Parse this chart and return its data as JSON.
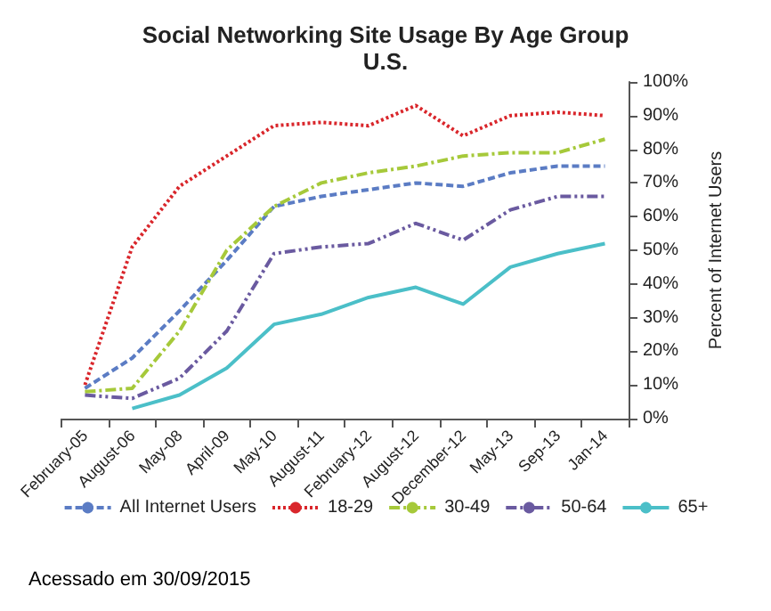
{
  "chart_data": {
    "type": "line",
    "title": "Social Networking Site Usage By Age Group",
    "subtitle": "U.S.",
    "ylabel": "Percent of Internet Users",
    "categories": [
      "February-05",
      "August-06",
      "May-08",
      "April-09",
      "May-10",
      "August-11",
      "February-12",
      "August-12",
      "December-12",
      "May-13",
      "Sep-13",
      "Jan-14"
    ],
    "series": [
      {
        "name": "All Internet Users",
        "color": "#5b7cc4",
        "line_style": "dashed",
        "values": [
          9,
          18,
          32,
          47,
          63,
          66,
          68,
          70,
          69,
          73,
          75,
          75
        ]
      },
      {
        "name": "18-29",
        "color": "#d9262b",
        "line_style": "dotted",
        "values": [
          10,
          51,
          69,
          78,
          87,
          88,
          87,
          93,
          84,
          90,
          91,
          90
        ]
      },
      {
        "name": "30-49",
        "color": "#a6c93a",
        "line_style": "dashdot",
        "values": [
          8,
          9,
          26,
          50,
          63,
          70,
          73,
          75,
          78,
          79,
          79,
          83
        ]
      },
      {
        "name": "50-64",
        "color": "#6a5aa0",
        "line_style": "dashdotdot",
        "values": [
          7,
          6,
          12,
          26,
          49,
          51,
          52,
          58,
          53,
          62,
          66,
          66
        ]
      },
      {
        "name": "65+",
        "color": "#4bbfc8",
        "line_style": "solid",
        "values": [
          null,
          3,
          7,
          15,
          28,
          31,
          36,
          39,
          34,
          45,
          49,
          52
        ]
      }
    ],
    "ylim": [
      0,
      100
    ],
    "yticks": [
      {
        "value": 0,
        "label": "0%"
      },
      {
        "value": 10,
        "label": "10%"
      },
      {
        "value": 20,
        "label": "20%"
      },
      {
        "value": 30,
        "label": "30%"
      },
      {
        "value": 40,
        "label": "40%"
      },
      {
        "value": 50,
        "label": "50%"
      },
      {
        "value": 60,
        "label": "60%"
      },
      {
        "value": 70,
        "label": "70%"
      },
      {
        "value": 80,
        "label": "80%"
      },
      {
        "value": 90,
        "label": "90%"
      },
      {
        "value": 100,
        "label": "100%"
      }
    ],
    "grid": false,
    "legend": "bottom",
    "marker": "none",
    "annotations": [
      "Acessado em 30/09/2015"
    ]
  }
}
